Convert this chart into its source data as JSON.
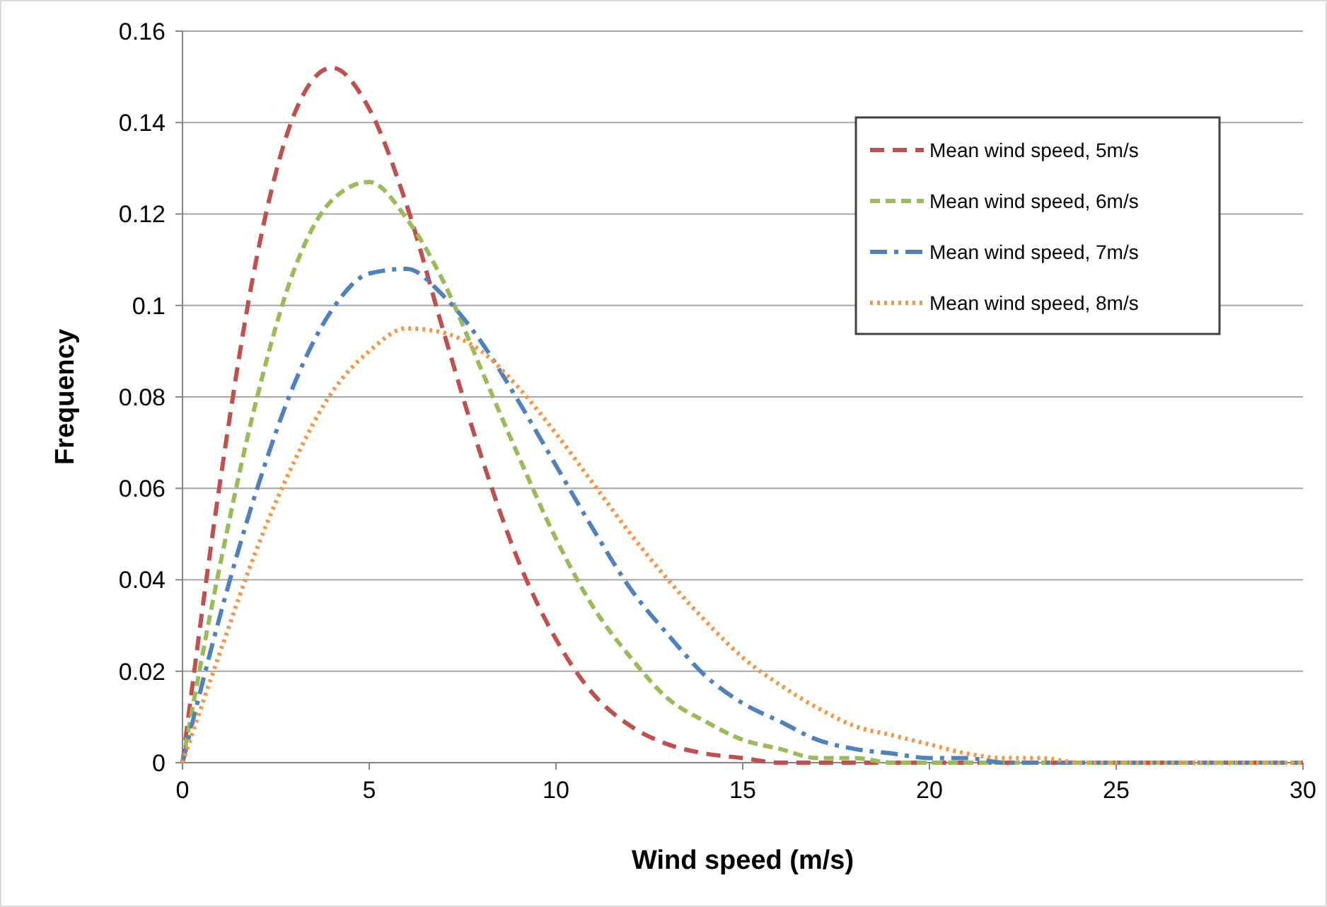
{
  "chart_data": {
    "type": "line",
    "xlabel": "Wind speed (m/s)",
    "ylabel": "Frequency",
    "x": [
      0,
      1,
      2,
      3,
      4,
      5,
      6,
      7,
      8,
      9,
      10,
      11,
      12,
      13,
      14,
      15,
      16,
      17,
      18,
      19,
      20,
      21,
      22,
      23,
      24,
      25,
      26,
      27,
      28,
      29,
      30
    ],
    "series": [
      {
        "name": "Mean wind speed, 5m/s",
        "color": "#c0504d",
        "line_style": "dashed",
        "values": [
          0,
          0.061,
          0.111,
          0.142,
          0.152,
          0.143,
          0.122,
          0.094,
          0.067,
          0.044,
          0.027,
          0.015,
          0.008,
          0.004,
          0.002,
          0.001,
          0,
          0,
          0,
          0,
          0,
          0,
          0,
          0,
          0,
          0,
          0,
          0,
          0,
          0,
          0
        ]
      },
      {
        "name": "Mean wind speed, 6m/s",
        "color": "#9bbb59",
        "line_style": "dashed",
        "values": [
          0,
          0.043,
          0.08,
          0.108,
          0.123,
          0.127,
          0.119,
          0.105,
          0.086,
          0.067,
          0.049,
          0.034,
          0.023,
          0.014,
          0.009,
          0.005,
          0.003,
          0.001,
          0.001,
          0,
          0,
          0,
          0,
          0,
          0,
          0,
          0,
          0,
          0,
          0,
          0
        ]
      },
      {
        "name": "Mean wind speed, 7m/s",
        "color": "#4f81bd",
        "line_style": "dashdot",
        "values": [
          0,
          0.032,
          0.06,
          0.083,
          0.099,
          0.107,
          0.108,
          0.102,
          0.092,
          0.079,
          0.065,
          0.051,
          0.038,
          0.028,
          0.019,
          0.013,
          0.009,
          0.005,
          0.003,
          0.002,
          0.001,
          0.001,
          0,
          0,
          0,
          0,
          0,
          0,
          0,
          0,
          0
        ]
      },
      {
        "name": "Mean wind speed, 8m/s",
        "color": "#f79646",
        "line_style": "dotted",
        "values": [
          0,
          0.024,
          0.047,
          0.066,
          0.081,
          0.09,
          0.095,
          0.094,
          0.09,
          0.082,
          0.072,
          0.061,
          0.05,
          0.04,
          0.031,
          0.023,
          0.017,
          0.012,
          0.008,
          0.006,
          0.004,
          0.002,
          0.001,
          0.001,
          0,
          0,
          0,
          0,
          0,
          0,
          0
        ]
      }
    ],
    "xlim": [
      0,
      30
    ],
    "xticks": [
      0,
      5,
      10,
      15,
      20,
      25,
      30
    ],
    "ylim": [
      0,
      0.16
    ],
    "yticks": [
      0,
      0.02,
      0.04,
      0.06,
      0.08,
      0.1,
      0.12,
      0.14,
      0.16
    ],
    "grid": "y",
    "legend": "top right",
    "marker": "none"
  }
}
